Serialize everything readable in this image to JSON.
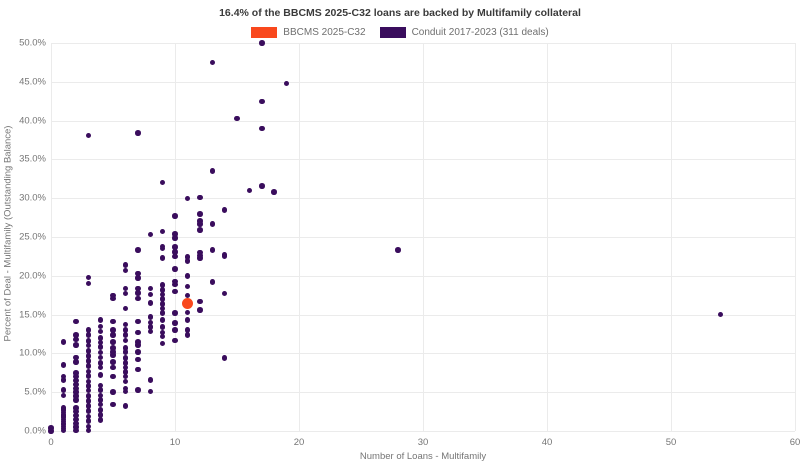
{
  "title": "16.4% of the BBCMS 2025-C32 loans are backed by Multifamily collateral",
  "legend": [
    {
      "name": "bbcms",
      "label": "BBCMS 2025-C32",
      "color": "#f9481d"
    },
    {
      "name": "conduit",
      "label": "Conduit 2017-2023 (311 deals)",
      "color": "#3a0d5d"
    }
  ],
  "colors": {
    "background": "#ffffff",
    "gridline": "#ebebeb",
    "title_text": "#3b3b3b",
    "tick_text": "#757575",
    "bbcms_accent": "#f9481d",
    "conduit_purple": "#3a0d5d"
  },
  "chart_data": {
    "type": "scatter",
    "title": "16.4% of the BBCMS 2025-C32 loans are backed by Multifamily collateral",
    "xlabel": "Number of Loans - Multifamily",
    "ylabel": "Percent of Deal - Multifamily (Outstanding Balance)",
    "xlim": [
      0,
      60
    ],
    "ylim": [
      0,
      50
    ],
    "x_ticks": [
      0,
      10,
      20,
      30,
      40,
      50,
      60
    ],
    "y_ticks": [
      0,
      5,
      10,
      15,
      20,
      25,
      30,
      35,
      40,
      45,
      50
    ],
    "y_tick_labels": [
      "0.0%",
      "5.0%",
      "10.0%",
      "15.0%",
      "20.0%",
      "25.0%",
      "30.0%",
      "35.0%",
      "40.0%",
      "45.0%",
      "50.0%"
    ],
    "grid": true,
    "legend_position": "top-center",
    "series": [
      {
        "name": "Conduit 2017-2023 (311 deals)",
        "color": "#3a0d5d",
        "marker_diameter_px": 5.5,
        "z": 2,
        "points": [
          [
            0,
            0.0
          ],
          [
            0,
            0.4
          ],
          [
            1,
            11.5
          ],
          [
            1,
            8.5
          ],
          [
            1,
            7.0
          ],
          [
            1,
            6.6
          ],
          [
            1,
            5.3
          ],
          [
            1,
            4.6
          ],
          [
            1,
            3.0
          ],
          [
            1,
            2.7
          ],
          [
            1,
            2.4
          ],
          [
            1,
            2.1
          ],
          [
            1,
            1.8
          ],
          [
            1,
            1.5
          ],
          [
            1,
            1.2
          ],
          [
            1,
            0.9
          ],
          [
            1,
            0.6
          ],
          [
            1,
            0.3
          ],
          [
            1,
            0.1
          ],
          [
            2,
            14.1
          ],
          [
            2,
            12.4
          ],
          [
            2,
            11.8
          ],
          [
            2,
            11.1
          ],
          [
            2,
            9.5
          ],
          [
            2,
            8.9
          ],
          [
            2,
            7.5
          ],
          [
            2,
            7.0
          ],
          [
            2,
            6.5
          ],
          [
            2,
            6.0
          ],
          [
            2,
            5.5
          ],
          [
            2,
            5.0
          ],
          [
            2,
            4.5
          ],
          [
            2,
            4.0
          ],
          [
            2,
            3.0
          ],
          [
            2,
            2.5
          ],
          [
            2,
            2.0
          ],
          [
            2,
            1.5
          ],
          [
            2,
            1.0
          ],
          [
            2,
            0.5
          ],
          [
            2,
            0.1
          ],
          [
            3,
            38.1
          ],
          [
            3,
            19.8
          ],
          [
            3,
            19.0
          ],
          [
            3,
            13.0
          ],
          [
            3,
            12.4
          ],
          [
            3,
            11.6
          ],
          [
            3,
            11.0
          ],
          [
            3,
            10.3
          ],
          [
            3,
            9.7
          ],
          [
            3,
            9.0
          ],
          [
            3,
            8.4
          ],
          [
            3,
            7.7
          ],
          [
            3,
            7.1
          ],
          [
            3,
            6.4
          ],
          [
            3,
            5.8
          ],
          [
            3,
            5.2
          ],
          [
            3,
            4.5
          ],
          [
            3,
            3.9
          ],
          [
            3,
            3.2
          ],
          [
            3,
            2.6
          ],
          [
            3,
            1.9
          ],
          [
            3,
            1.3
          ],
          [
            3,
            0.6
          ],
          [
            3,
            0.1
          ],
          [
            4,
            14.3
          ],
          [
            4,
            13.5
          ],
          [
            4,
            12.8
          ],
          [
            4,
            12.0
          ],
          [
            4,
            11.4
          ],
          [
            4,
            10.8
          ],
          [
            4,
            10.1
          ],
          [
            4,
            9.5
          ],
          [
            4,
            8.8
          ],
          [
            4,
            8.2
          ],
          [
            4,
            7.2
          ],
          [
            4,
            5.9
          ],
          [
            4,
            5.3
          ],
          [
            4,
            4.6
          ],
          [
            4,
            4.0
          ],
          [
            4,
            3.4
          ],
          [
            4,
            2.7
          ],
          [
            4,
            2.1
          ],
          [
            4,
            1.4
          ],
          [
            5,
            17.5
          ],
          [
            5,
            17.1
          ],
          [
            5,
            14.1
          ],
          [
            5,
            13.0
          ],
          [
            5,
            12.4
          ],
          [
            5,
            11.5
          ],
          [
            5,
            10.7
          ],
          [
            5,
            10.2
          ],
          [
            5,
            9.8
          ],
          [
            5,
            8.9
          ],
          [
            5,
            8.2
          ],
          [
            5,
            7.0
          ],
          [
            5,
            5.0
          ],
          [
            5,
            3.4
          ],
          [
            6,
            21.4
          ],
          [
            6,
            20.7
          ],
          [
            6,
            18.4
          ],
          [
            6,
            17.7
          ],
          [
            6,
            15.8
          ],
          [
            6,
            13.7
          ],
          [
            6,
            13.0
          ],
          [
            6,
            12.4
          ],
          [
            6,
            11.7
          ],
          [
            6,
            10.7
          ],
          [
            6,
            10.2
          ],
          [
            6,
            9.4
          ],
          [
            6,
            8.8
          ],
          [
            6,
            8.2
          ],
          [
            6,
            7.6
          ],
          [
            6,
            7.0
          ],
          [
            6,
            6.4
          ],
          [
            6,
            5.5
          ],
          [
            6,
            5.1
          ],
          [
            6,
            3.2
          ],
          [
            7,
            38.4
          ],
          [
            7,
            23.3
          ],
          [
            7,
            20.3
          ],
          [
            7,
            19.7
          ],
          [
            7,
            18.4
          ],
          [
            7,
            17.8
          ],
          [
            7,
            17.1
          ],
          [
            7,
            14.1
          ],
          [
            7,
            12.7
          ],
          [
            7,
            11.5
          ],
          [
            7,
            11.1
          ],
          [
            7,
            10.2
          ],
          [
            7,
            9.2
          ],
          [
            7,
            7.9
          ],
          [
            7,
            5.3
          ],
          [
            8,
            25.3
          ],
          [
            8,
            18.4
          ],
          [
            8,
            17.6
          ],
          [
            8,
            16.5
          ],
          [
            8,
            14.7
          ],
          [
            8,
            14.0
          ],
          [
            8,
            13.4
          ],
          [
            8,
            12.8
          ],
          [
            8,
            6.6
          ],
          [
            8,
            5.1
          ],
          [
            9,
            32.0
          ],
          [
            9,
            25.7
          ],
          [
            9,
            23.8
          ],
          [
            9,
            23.5
          ],
          [
            9,
            22.3
          ],
          [
            9,
            18.8
          ],
          [
            9,
            18.2
          ],
          [
            9,
            17.6
          ],
          [
            9,
            17.0
          ],
          [
            9,
            16.4
          ],
          [
            9,
            15.8
          ],
          [
            9,
            15.2
          ],
          [
            9,
            14.3
          ],
          [
            9,
            13.4
          ],
          [
            9,
            12.7
          ],
          [
            9,
            12.2
          ],
          [
            9,
            11.3
          ],
          [
            10,
            27.7
          ],
          [
            10,
            25.4
          ],
          [
            10,
            24.9
          ],
          [
            10,
            23.7
          ],
          [
            10,
            23.1
          ],
          [
            10,
            22.5
          ],
          [
            10,
            20.9
          ],
          [
            10,
            19.3
          ],
          [
            10,
            18.9
          ],
          [
            10,
            18.0
          ],
          [
            10,
            15.2
          ],
          [
            10,
            13.9
          ],
          [
            10,
            13.0
          ],
          [
            10,
            11.7
          ],
          [
            11,
            30.0
          ],
          [
            11,
            22.4
          ],
          [
            11,
            21.9
          ],
          [
            11,
            20.0
          ],
          [
            11,
            18.6
          ],
          [
            11,
            17.5
          ],
          [
            11,
            15.3
          ],
          [
            11,
            14.3
          ],
          [
            11,
            13.0
          ],
          [
            11,
            12.4
          ],
          [
            12,
            30.1
          ],
          [
            12,
            28.0
          ],
          [
            12,
            27.1
          ],
          [
            12,
            26.7
          ],
          [
            12,
            25.9
          ],
          [
            12,
            23.0
          ],
          [
            12,
            22.6
          ],
          [
            12,
            22.3
          ],
          [
            12,
            16.7
          ],
          [
            12,
            15.6
          ],
          [
            13,
            47.5
          ],
          [
            13,
            33.5
          ],
          [
            13,
            26.7
          ],
          [
            13,
            23.3
          ],
          [
            13,
            19.2
          ],
          [
            14,
            28.5
          ],
          [
            14,
            22.7
          ],
          [
            14,
            22.5
          ],
          [
            14,
            17.7
          ],
          [
            14,
            9.4
          ],
          [
            15,
            40.3
          ],
          [
            16,
            31.0
          ],
          [
            17,
            50.0
          ],
          [
            17,
            42.5
          ],
          [
            17,
            39.0
          ],
          [
            17,
            31.6
          ],
          [
            18,
            30.8
          ],
          [
            19,
            44.8
          ],
          [
            28,
            23.3
          ],
          [
            54,
            15.0
          ]
        ]
      },
      {
        "name": "BBCMS 2025-C32",
        "color": "#f9481d",
        "marker_diameter_px": 11,
        "z": 3,
        "points": [
          [
            11,
            16.4
          ]
        ]
      }
    ]
  }
}
